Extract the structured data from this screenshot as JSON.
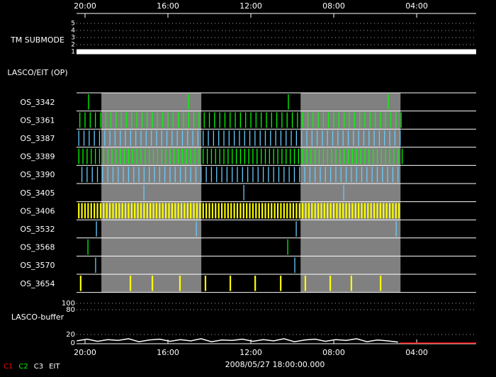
{
  "chart_data": {
    "type": "timeline",
    "xlim": [
      20.41,
      1.13
    ],
    "xticks": [
      {
        "value": 20,
        "label": "20:00"
      },
      {
        "value": 16,
        "label": "16:00"
      },
      {
        "value": 12,
        "label": "12:00"
      },
      {
        "value": 8,
        "label": "08:00"
      },
      {
        "value": 4,
        "label": "04:00"
      }
    ],
    "date_label": "2008/05/27 18:00:00.000",
    "shaded": [
      [
        19.21,
        14.39
      ],
      [
        9.6,
        4.78
      ]
    ],
    "shade_color": "#808080",
    "submode": {
      "label": "TM SUBMODE",
      "ylim": [
        1,
        5
      ],
      "yticks": [
        5,
        4,
        3,
        2,
        1
      ],
      "series": [
        {
          "color": "#ffffff",
          "x": [
            20.41,
            1.13
          ],
          "values": [
            1,
            1
          ]
        }
      ]
    },
    "section_label": "LASCO/EIT (OP)",
    "rows": [
      {
        "name": "OS_3342",
        "color": "#00ff00",
        "events": [
          19.83,
          15.01,
          10.19,
          5.37
        ]
      },
      {
        "name": "OS_3361",
        "color": "#00ff00",
        "events": [
          20.25,
          20,
          19.75,
          19.5,
          19.25,
          19,
          18.75,
          18.5,
          18.25,
          18,
          17.75,
          17.5,
          17.25,
          17,
          16.75,
          16.5,
          16.25,
          16,
          15.75,
          15.5,
          15.25,
          15,
          14.75,
          14.5,
          14.25,
          14,
          13.75,
          13.5,
          13.25,
          13,
          12.75,
          12.5,
          12.25,
          12,
          11.75,
          11.5,
          11.25,
          11,
          10.75,
          10.5,
          10.25,
          10,
          9.75,
          9.5,
          9.25,
          9,
          8.75,
          8.5,
          8.25,
          8,
          7.75,
          7.5,
          7.25,
          7,
          6.75,
          6.5,
          6.25,
          6,
          5.75,
          5.5,
          5.25,
          5,
          4.75
        ]
      },
      {
        "name": "OS_3387",
        "color": "#66ccff",
        "events": [
          20.3,
          20.05,
          19.8,
          19.55,
          19.3,
          19.05,
          18.8,
          18.55,
          18.3,
          18.05,
          17.8,
          17.55,
          17.3,
          17.05,
          16.8,
          16.55,
          16.3,
          16.05,
          15.8,
          15.55,
          15.3,
          15.05,
          14.8,
          14.55,
          14.3,
          14.05,
          13.8,
          13.55,
          13.3,
          13.05,
          12.8,
          12.55,
          12.3,
          12.05,
          11.8,
          11.55,
          11.3,
          11.05,
          10.8,
          10.55,
          10.3,
          10.05,
          9.8,
          9.55,
          9.3,
          9.05,
          8.8,
          8.55,
          8.3,
          8.05,
          7.8,
          7.55,
          7.3,
          7.05,
          6.8,
          6.55,
          6.3,
          6.05,
          5.8,
          5.55,
          5.3,
          5.05,
          4.8
        ]
      },
      {
        "name": "OS_3389",
        "color": "#00ff00",
        "events": [
          20.3,
          20.1,
          19.9,
          19.7,
          19.5,
          19.3,
          19.1,
          18.9,
          18.7,
          18.5,
          18.3,
          18.1,
          17.9,
          17.7,
          17.5,
          17.3,
          17.1,
          16.9,
          16.7,
          16.5,
          16.3,
          16.1,
          15.9,
          15.7,
          15.5,
          15.3,
          15.1,
          14.9,
          14.7,
          14.5,
          14.3,
          14.1,
          13.9,
          13.7,
          13.5,
          13.3,
          13.1,
          12.9,
          12.7,
          12.5,
          12.3,
          12.1,
          11.9,
          11.7,
          11.5,
          11.3,
          11.1,
          10.9,
          10.7,
          10.5,
          10.3,
          10.1,
          9.9,
          9.7,
          9.5,
          9.3,
          9.1,
          8.9,
          8.7,
          8.5,
          8.3,
          8.1,
          7.9,
          7.7,
          7.5,
          7.3,
          7.1,
          6.9,
          6.7,
          6.5,
          6.3,
          6.1,
          5.9,
          5.7,
          5.5,
          5.3,
          5.1,
          4.9,
          4.7
        ]
      },
      {
        "name": "OS_3390",
        "color": "#66ccff",
        "events": [
          20.15,
          19.9,
          19.65,
          19.4,
          19.15,
          18.9,
          18.65,
          18.4,
          18.15,
          17.9,
          17.65,
          17.4,
          17.15,
          16.9,
          16.65,
          16.4,
          16.15,
          15.9,
          15.65,
          15.4,
          15.15,
          14.9,
          14.65,
          14.4,
          14.15,
          13.9,
          13.65,
          13.4,
          13.15,
          12.9,
          12.65,
          12.4,
          12.15,
          11.9,
          11.65,
          11.4,
          11.15,
          10.9,
          10.65,
          10.4,
          10.15,
          9.9,
          9.65,
          9.4,
          9.15,
          8.9,
          8.65,
          8.4,
          8.15,
          7.9,
          7.65,
          7.4,
          7.15,
          6.9,
          6.65,
          6.4,
          6.15,
          5.9,
          5.65,
          5.4,
          5.15,
          4.9
        ]
      },
      {
        "name": "OS_3405",
        "color": "#66ccff",
        "events": [
          17.16,
          12.34,
          7.52
        ]
      },
      {
        "name": "OS_3406",
        "color": "#ffff00",
        "events": [
          20.3,
          20.15,
          20,
          19.85,
          19.7,
          19.55,
          19.4,
          19.25,
          19.1,
          18.95,
          18.8,
          18.65,
          18.5,
          18.35,
          18.2,
          18.05,
          17.9,
          17.75,
          17.6,
          17.45,
          17.3,
          17.15,
          17,
          16.85,
          16.7,
          16.55,
          16.4,
          16.25,
          16.1,
          15.95,
          15.8,
          15.65,
          15.5,
          15.35,
          15.2,
          15.05,
          14.9,
          14.75,
          14.6,
          14.45,
          14.3,
          14.15,
          14,
          13.85,
          13.7,
          13.55,
          13.4,
          13.25,
          13.1,
          12.95,
          12.8,
          12.65,
          12.5,
          12.35,
          12.2,
          12.05,
          11.9,
          11.75,
          11.6,
          11.45,
          11.3,
          11.15,
          11,
          10.85,
          10.7,
          10.55,
          10.4,
          10.25,
          10.1,
          9.95,
          9.8,
          9.65,
          9.5,
          9.35,
          9.2,
          9.05,
          8.9,
          8.75,
          8.6,
          8.45,
          8.3,
          8.15,
          8,
          7.85,
          7.7,
          7.55,
          7.4,
          7.25,
          7.1,
          6.95,
          6.8,
          6.65,
          6.5,
          6.35,
          6.2,
          6.05,
          5.9,
          5.75,
          5.6,
          5.45,
          5.3,
          5.15,
          5,
          4.85
        ]
      },
      {
        "name": "OS_3532",
        "color": "#66ccff",
        "events": [
          19.45,
          14.63,
          9.81,
          4.99
        ]
      },
      {
        "name": "OS_3568",
        "color": "#00ff00",
        "events": [
          19.86,
          10.22
        ]
      },
      {
        "name": "OS_3570",
        "color": "#66ccff",
        "events": [
          19.49,
          9.88
        ]
      },
      {
        "name": "OS_3654",
        "color": "#ffff00",
        "events": [
          20.21,
          17.81,
          16.75,
          15.42,
          14.19,
          12.99,
          11.79,
          10.56,
          9.37,
          8.17,
          7.15,
          5.74
        ]
      }
    ],
    "buffer": {
      "label": "LASCO-buffer",
      "yticks": [
        100,
        80,
        20,
        0
      ],
      "series": [
        {
          "color": "#ffffff",
          "x": [
            20.4,
            19.9,
            19.4,
            18.9,
            18.4,
            17.9,
            17.4,
            16.9,
            16.4,
            15.9,
            15.4,
            14.9,
            14.4,
            13.9,
            13.4,
            12.9,
            12.4,
            11.9,
            11.4,
            10.9,
            10.4,
            9.9,
            9.4,
            8.9,
            8.4,
            7.9,
            7.4,
            6.9,
            6.4,
            5.9,
            5.4,
            4.9
          ],
          "values": [
            5,
            9,
            4,
            8,
            6,
            10,
            3,
            7,
            9,
            4,
            8,
            5,
            10,
            3,
            7,
            6,
            9,
            4,
            8,
            5,
            10,
            3,
            7,
            9,
            4,
            8,
            6,
            10,
            3,
            7,
            5,
            2
          ]
        },
        {
          "color": "#ff0000",
          "x": [
            4.8,
            1.13
          ],
          "values": [
            0,
            0
          ]
        }
      ]
    },
    "legend": [
      {
        "name": "C1",
        "color": "#ff0000"
      },
      {
        "name": "C2",
        "color": "#00ff00"
      },
      {
        "name": "C3",
        "color": "#ffffff"
      },
      {
        "name": "EIT",
        "color": "#ffffff"
      }
    ]
  }
}
